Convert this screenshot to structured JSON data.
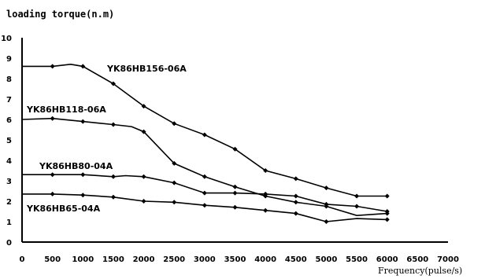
{
  "chart_data": {
    "type": "line",
    "ylabel": "loading torque(n.m)",
    "xlabel": "Frequency(pulse/s)",
    "xlim": [
      0,
      7000
    ],
    "ylim": [
      0,
      10
    ],
    "xticks": [
      0,
      500,
      1000,
      1500,
      2000,
      2500,
      3000,
      3500,
      4000,
      4500,
      5000,
      5500,
      6000,
      6500,
      7000
    ],
    "yticks": [
      0,
      1,
      2,
      3,
      4,
      5,
      6,
      7,
      8,
      9,
      10
    ],
    "grid": false,
    "series": [
      {
        "name": "YK86HB156-06A",
        "points": [
          [
            0,
            8.6
          ],
          [
            500,
            8.6
          ],
          [
            800,
            8.7
          ],
          [
            1000,
            8.6
          ],
          [
            1500,
            7.75
          ],
          [
            2000,
            6.65
          ],
          [
            2500,
            5.8
          ],
          [
            3000,
            5.25
          ],
          [
            3500,
            4.55
          ],
          [
            4000,
            3.5
          ],
          [
            4500,
            3.1
          ],
          [
            5000,
            2.65
          ],
          [
            5500,
            2.25
          ],
          [
            6000,
            2.25
          ]
        ],
        "markers": [
          [
            500,
            8.6
          ],
          [
            1000,
            8.6
          ],
          [
            1500,
            7.75
          ],
          [
            2000,
            6.65
          ],
          [
            2500,
            5.8
          ],
          [
            3000,
            5.25
          ],
          [
            3500,
            4.55
          ],
          [
            4000,
            3.5
          ],
          [
            4500,
            3.1
          ],
          [
            5000,
            2.65
          ],
          [
            5500,
            2.25
          ],
          [
            6000,
            2.25
          ]
        ]
      },
      {
        "name": "YK86HB118-06A",
        "points": [
          [
            0,
            6.0
          ],
          [
            500,
            6.05
          ],
          [
            1000,
            5.9
          ],
          [
            1500,
            5.75
          ],
          [
            1800,
            5.65
          ],
          [
            2000,
            5.4
          ],
          [
            2500,
            3.85
          ],
          [
            3000,
            3.2
          ],
          [
            3500,
            2.7
          ],
          [
            4000,
            2.25
          ],
          [
            4500,
            1.95
          ],
          [
            5000,
            1.75
          ],
          [
            5500,
            1.3
          ],
          [
            6000,
            1.4
          ]
        ],
        "markers": [
          [
            500,
            6.05
          ],
          [
            1000,
            5.9
          ],
          [
            1500,
            5.75
          ],
          [
            2000,
            5.4
          ],
          [
            2500,
            3.85
          ],
          [
            3000,
            3.2
          ],
          [
            3500,
            2.7
          ],
          [
            4000,
            2.25
          ],
          [
            4500,
            1.95
          ],
          [
            5000,
            1.75
          ],
          [
            6000,
            1.4
          ]
        ]
      },
      {
        "name": "YK86HB80-04A",
        "points": [
          [
            0,
            3.3
          ],
          [
            500,
            3.3
          ],
          [
            1000,
            3.3
          ],
          [
            1500,
            3.2
          ],
          [
            1700,
            3.25
          ],
          [
            2000,
            3.2
          ],
          [
            2500,
            2.9
          ],
          [
            3000,
            2.4
          ],
          [
            3300,
            2.4
          ],
          [
            3500,
            2.4
          ],
          [
            4000,
            2.35
          ],
          [
            4500,
            2.25
          ],
          [
            5000,
            1.85
          ],
          [
            5500,
            1.75
          ],
          [
            6000,
            1.5
          ]
        ],
        "markers": [
          [
            500,
            3.3
          ],
          [
            1000,
            3.3
          ],
          [
            1500,
            3.2
          ],
          [
            2000,
            3.2
          ],
          [
            2500,
            2.9
          ],
          [
            3000,
            2.4
          ],
          [
            3500,
            2.4
          ],
          [
            4000,
            2.35
          ],
          [
            4500,
            2.25
          ],
          [
            5000,
            1.85
          ],
          [
            5500,
            1.75
          ],
          [
            6000,
            1.5
          ]
        ]
      },
      {
        "name": "YK86HB65-04A",
        "points": [
          [
            0,
            2.35
          ],
          [
            500,
            2.35
          ],
          [
            1000,
            2.3
          ],
          [
            1500,
            2.2
          ],
          [
            2000,
            2.0
          ],
          [
            2500,
            1.95
          ],
          [
            3000,
            1.8
          ],
          [
            3500,
            1.7
          ],
          [
            4000,
            1.55
          ],
          [
            4500,
            1.4
          ],
          [
            5000,
            1.0
          ],
          [
            5500,
            1.15
          ],
          [
            6000,
            1.1
          ]
        ],
        "markers": [
          [
            500,
            2.35
          ],
          [
            1000,
            2.3
          ],
          [
            1500,
            2.2
          ],
          [
            2000,
            2.0
          ],
          [
            2500,
            1.95
          ],
          [
            3000,
            1.8
          ],
          [
            3500,
            1.7
          ],
          [
            4000,
            1.55
          ],
          [
            4500,
            1.4
          ],
          [
            5000,
            1.0
          ],
          [
            6000,
            1.1
          ]
        ]
      }
    ]
  }
}
